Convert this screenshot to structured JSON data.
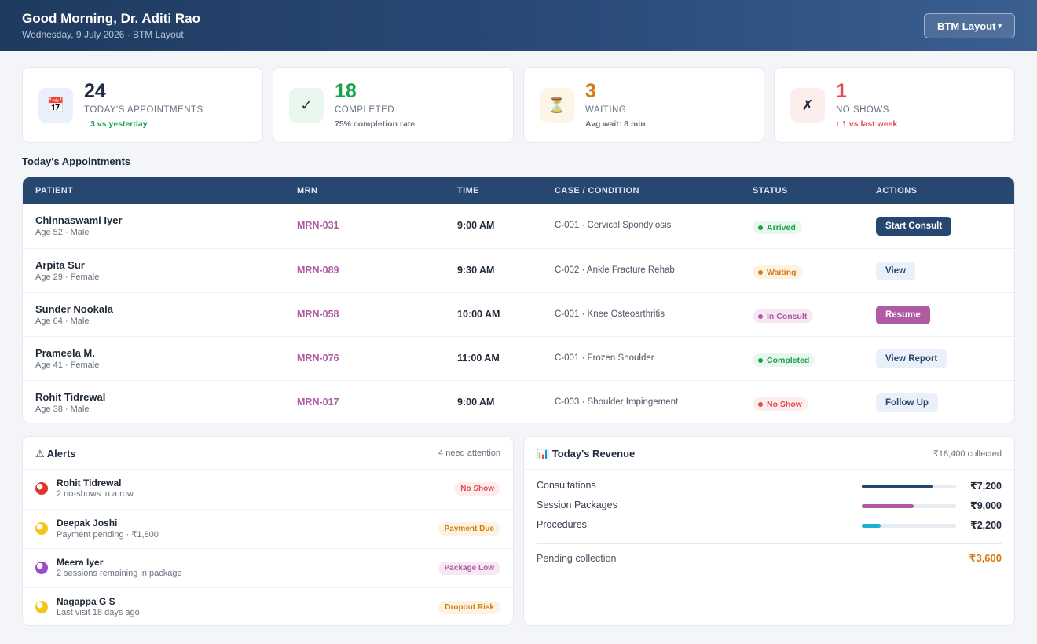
{
  "header": {
    "greeting": "Good Morning, Dr. Aditi Rao",
    "date_line": "Wednesday, 9 July 2026 · BTM Layout",
    "location_button": "BTM Layout",
    "caret": "▾"
  },
  "stats": [
    {
      "icon": "calendar-icon",
      "glyph": "📅",
      "value": "24",
      "label": "TODAY'S APPOINTMENTS",
      "sub": "↑ 3 vs yesterday",
      "color": "#1e2d44",
      "sub_color": "#16a34a",
      "bg": "#eaf0fb"
    },
    {
      "icon": "check-icon",
      "glyph": "✓",
      "value": "18",
      "label": "COMPLETED",
      "sub": "75% completion rate",
      "color": "#16a34a",
      "sub_color": "#6b7280",
      "bg": "#eaf7ee"
    },
    {
      "icon": "hourglass-icon",
      "glyph": "⏳",
      "value": "3",
      "label": "WAITING",
      "sub": "Avg wait: 8 min",
      "color": "#d67a0f",
      "sub_color": "#6b7280",
      "bg": "#fdf5e6"
    },
    {
      "icon": "cross-icon",
      "glyph": "✗",
      "value": "1",
      "label": "NO SHOWS",
      "sub": "↑ 1 vs last week",
      "color": "#e5484d",
      "sub_color": "#e5484d",
      "bg": "#fdeeee"
    }
  ],
  "appointments": {
    "title": "Today's Appointments",
    "columns": [
      "PATIENT",
      "MRN",
      "TIME",
      "CASE / CONDITION",
      "STATUS",
      "ACTIONS"
    ],
    "rows": [
      {
        "name": "Chinnaswami Iyer",
        "meta": "Age 52 · Male",
        "mrn": "MRN-031",
        "time": "9:00 AM",
        "case": "C-001 · Cervical Spondylosis",
        "status": "Arrived",
        "status_color": "#16a34a",
        "status_bg": "#eaf7ee",
        "action": "Start Consult",
        "action_color": "#ffffff",
        "action_bg": "#274670"
      },
      {
        "name": "Arpita Sur",
        "meta": "Age 29 · Female",
        "mrn": "MRN-089",
        "time": "9:30 AM",
        "case": "C-002 · Ankle Fracture Rehab",
        "status": "Waiting",
        "status_color": "#d67a0f",
        "status_bg": "#fdf3e3",
        "action": "View",
        "action_color": "#274670",
        "action_bg": "#eaf0f9"
      },
      {
        "name": "Sunder Nookala",
        "meta": "Age 64 · Male",
        "mrn": "MRN-058",
        "time": "10:00 AM",
        "case": "C-001 · Knee Osteoarthritis",
        "status": "In Consult",
        "status_color": "#b05aa4",
        "status_bg": "#f6e9f4",
        "action": "Resume",
        "action_color": "#ffffff",
        "action_bg": "#b05aa4"
      },
      {
        "name": "Prameela M.",
        "meta": "Age 41 · Female",
        "mrn": "MRN-076",
        "time": "11:00 AM",
        "case": "C-001 · Frozen Shoulder",
        "status": "Completed",
        "status_color": "#16a34a",
        "status_bg": "#eaf7ee",
        "action": "View Report",
        "action_color": "#274670",
        "action_bg": "#eaf0f9"
      },
      {
        "name": "Rohit Tidrewal",
        "meta": "Age 38 · Male",
        "mrn": "MRN-017",
        "time": "9:00 AM",
        "case": "C-003 · Shoulder Impingement",
        "status": "No Show",
        "status_color": "#e5484d",
        "status_bg": "#fdeeee",
        "action": "Follow Up",
        "action_color": "#274670",
        "action_bg": "#eaf0f9"
      }
    ]
  },
  "alerts": {
    "title": "⚠ Alerts",
    "note": "4 need attention",
    "items": [
      {
        "icon": "red-circle-icon",
        "dot": "#e0342f",
        "name": "Rohit Tidrewal",
        "desc": "2 no-shows in a row",
        "tag": "No Show",
        "tag_color": "#e5484d",
        "tag_bg": "#fdeeee"
      },
      {
        "icon": "yellow-circle-icon",
        "dot": "#f5c518",
        "name": "Deepak Joshi",
        "desc": "Payment pending · ₹1,800",
        "tag": "Payment Due",
        "tag_color": "#d67a0f",
        "tag_bg": "#fdf3e3"
      },
      {
        "icon": "purple-circle-icon",
        "dot": "#9b4dca",
        "name": "Meera Iyer",
        "desc": "2 sessions remaining in package",
        "tag": "Package Low",
        "tag_color": "#b05aa4",
        "tag_bg": "#f6e9f4"
      },
      {
        "icon": "yellow-circle-icon",
        "dot": "#f5c518",
        "name": "Nagappa G S",
        "desc": "Last visit 18 days ago",
        "tag": "Dropout Risk",
        "tag_color": "#d67a0f",
        "tag_bg": "#fdf3e3"
      }
    ]
  },
  "revenue": {
    "title": "📊 Today's Revenue",
    "note": "₹18,400 collected",
    "items": [
      {
        "label": "Consultations",
        "amount": "₹7,200",
        "fraction": 0.75,
        "color": "#274670"
      },
      {
        "label": "Session Packages",
        "amount": "₹9,000",
        "fraction": 0.55,
        "color": "#b05aa4"
      },
      {
        "label": "Procedures",
        "amount": "₹2,200",
        "fraction": 0.2,
        "color": "#1fb0d6"
      }
    ],
    "pending_label": "Pending collection",
    "pending_amount": "₹3,600"
  }
}
